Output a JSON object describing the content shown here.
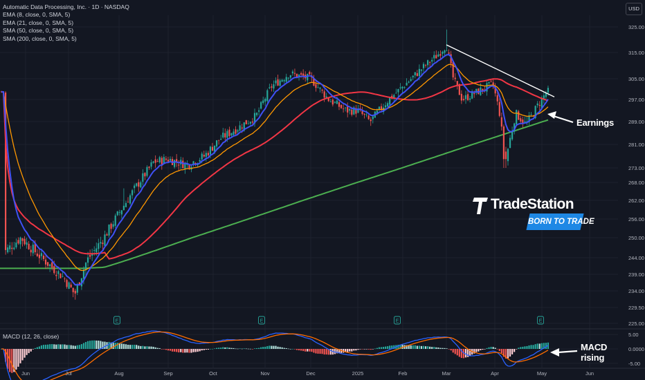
{
  "legend": {
    "title": "Automatic Data Processing, Inc. · 1D · NASDAQ",
    "studies": [
      "EMA (8, close, 0, SMA, 5)",
      "EMA (21, close, 0, SMA, 5)",
      "SMA (50, close, 0, SMA, 5)",
      "SMA (200, close, 0, SMA, 5)"
    ]
  },
  "currency": "USD",
  "macd_label": "MACD (12, 26, close)",
  "annotations": {
    "earnings": "Earnings",
    "macd_line1": "MACD",
    "macd_line2": "rising"
  },
  "logo": {
    "wordmark": "TradeStation",
    "tagline": "BORN TO TRADE"
  },
  "colors": {
    "up": "#26a69a",
    "down": "#ef5350",
    "ema8": "#3f51f5",
    "ema21": "#ff9800",
    "sma50": "#f23645",
    "sma200": "#4caf50",
    "trendline": "#ffffff",
    "macd": "#2962ff",
    "signal": "#ff6d00",
    "logo_accent": "#1e88e5"
  },
  "chart_data": [
    {
      "type": "candlestick",
      "y_ticks": [
        "325.00",
        "315.00",
        "305.00",
        "297.00",
        "289.00",
        "281.00",
        "273.00",
        "268.00",
        "262.00",
        "256.00",
        "250.00",
        "244.00",
        "239.00",
        "234.00",
        "229.50",
        "225.00"
      ],
      "ylim": [
        223,
        330
      ],
      "x_ticks": [
        "Jun",
        "Jul",
        "Aug",
        "Sep",
        "Oct",
        "Nov",
        "Dec",
        "2025",
        "Feb",
        "Mar",
        "Apr",
        "May",
        "Jun"
      ],
      "earnings_markers": [
        "Jul",
        "Oct",
        "Jan",
        "Apr"
      ],
      "earnings_marker_label": "E",
      "closes_anchor": [
        [
          "Jun",
          246
        ],
        [
          "Jun",
          249
        ],
        [
          "Jul",
          244
        ],
        [
          "Jul",
          233
        ],
        [
          "Aug",
          248
        ],
        [
          "Aug",
          258
        ],
        [
          "Sep",
          270
        ],
        [
          "Sep",
          276
        ],
        [
          "Oct",
          274
        ],
        [
          "Oct",
          287
        ],
        [
          "Nov",
          290
        ],
        [
          "Nov",
          307
        ],
        [
          "Dec",
          305
        ],
        [
          "Dec",
          295
        ],
        [
          "2025",
          293
        ],
        [
          "2025",
          290
        ],
        [
          "Feb",
          302
        ],
        [
          "Feb",
          311
        ],
        [
          "Mar",
          317
        ],
        [
          "Mar",
          301
        ],
        [
          "Apr",
          303
        ],
        [
          "Apr",
          277
        ],
        [
          "May",
          294
        ],
        [
          "May",
          301
        ]
      ],
      "trendline": [
        [
          "Mar",
          318
        ],
        [
          "May",
          298
        ]
      ]
    },
    {
      "type": "line",
      "name": "MACD (12, 26, close)",
      "y_ticks": [
        "5.00",
        "0.0000",
        "-5.00"
      ],
      "ylim": [
        -6.5,
        6.5
      ]
    }
  ]
}
